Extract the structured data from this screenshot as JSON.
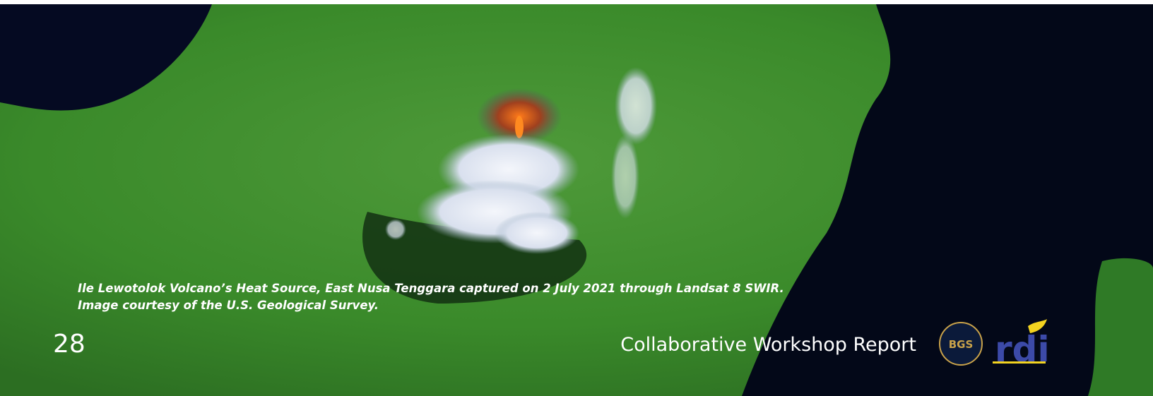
{
  "caption": [
    "Ile Lewotolok Volcano’s Heat Source, East Nusa Tenggara captured on 2 July 2021 through Landsat 8 SWIR.",
    "Image courtesy of the U.S. Geological Survey."
  ],
  "page_number": "28",
  "footer_title": "Collaborative Workshop Report",
  "logos": [
    "BGS",
    "rdi"
  ]
}
